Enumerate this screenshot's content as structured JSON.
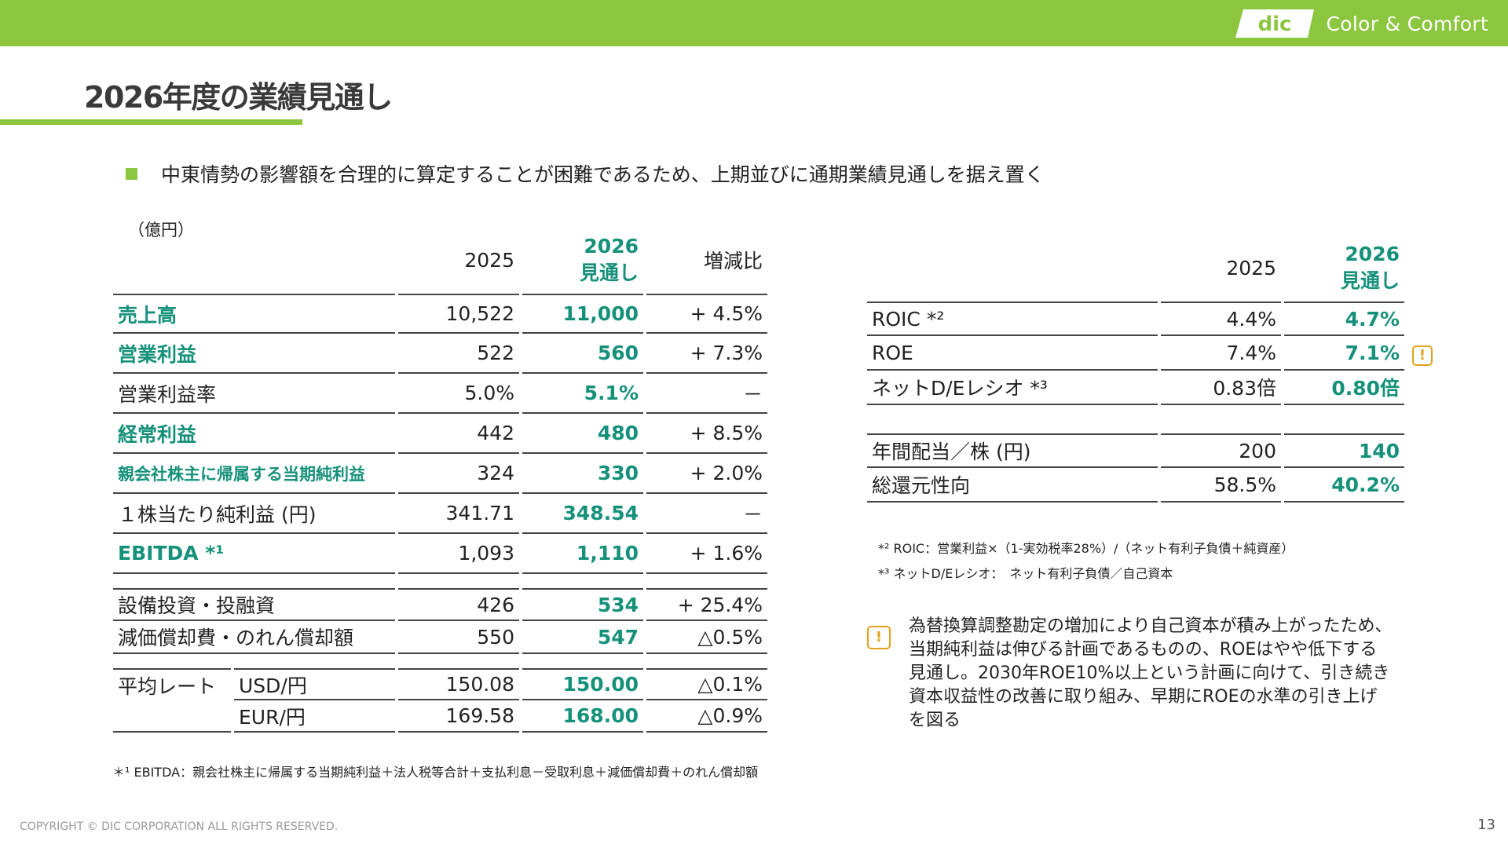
{
  "header": {
    "brand": "Color & Comfort",
    "logo_text": "dic"
  },
  "title": "2026年度の業績見通し",
  "lead": "中東情勢の影響額を合理的に算定することが困難であるため、上期並びに通期業績見通しを据え置く",
  "unit": "（億円）",
  "left_table": {
    "col_2025": "2025",
    "col_2026_a": "2026",
    "col_2026_b": "見通し",
    "col_change": "増減比",
    "rows": [
      {
        "label": "売上高",
        "v2025": "10,522",
        "v2026": "11,000",
        "change": "+ 4.5%"
      },
      {
        "label": "営業利益",
        "v2025": "522",
        "v2026": "560",
        "change": "+ 7.3%"
      },
      {
        "label": "営業利益率",
        "v2025": "5.0%",
        "v2026": "5.1%",
        "change": "－"
      },
      {
        "label": "経常利益",
        "v2025": "442",
        "v2026": "480",
        "change": "+ 8.5%"
      },
      {
        "label": "親会社株主に帰属する当期純利益",
        "v2025": "324",
        "v2026": "330",
        "change": "+ 2.0%"
      },
      {
        "label": "１株当たり純利益 (円)",
        "v2025": "341.71",
        "v2026": "348.54",
        "change": "－"
      },
      {
        "label": "EBITDA *¹",
        "v2025": "1,093",
        "v2026": "1,110",
        "change": "+ 1.6%"
      },
      {
        "label": "設備投資・投融資",
        "v2025": "426",
        "v2026": "534",
        "change": "+ 25.4%"
      },
      {
        "label": "減価償却費・のれん償却額",
        "v2025": "550",
        "v2026": "547",
        "change": "△0.5%"
      }
    ],
    "rate_label": "平均レート",
    "rates": [
      {
        "ccy": "USD/円",
        "v2025": "150.08",
        "v2026": "150.00",
        "change": "△0.1%"
      },
      {
        "ccy": "EUR/円",
        "v2025": "169.58",
        "v2026": "168.00",
        "change": "△0.9%"
      }
    ]
  },
  "right_table": {
    "col_2025": "2025",
    "col_2026_a": "2026",
    "col_2026_b": "見通し",
    "rows": [
      {
        "label": "ROIC *²",
        "v2025": "4.4%",
        "v2026": "4.7%"
      },
      {
        "label": "ROE",
        "v2025": "7.4%",
        "v2026": "7.1%",
        "warn": "!"
      },
      {
        "label": "ネットD/Eレシオ *³",
        "v2025": "0.83倍",
        "v2026": "0.80倍"
      },
      {
        "label": "年間配当／株 (円)",
        "v2025": "200",
        "v2026": "140"
      },
      {
        "label": "総還元性向",
        "v2025": "58.5%",
        "v2026": "40.2%"
      }
    ]
  },
  "footnotes": {
    "roic": "*² ROIC：営業利益×（1-実効税率28%）/（ネット有利子負債＋純資産）",
    "de": "*³ ネットD/Eレシオ：　ネット有利子負債／自己資本",
    "ebitda": "＊¹ EBITDA：親会社株主に帰属する当期純利益＋法人税等合計＋支払利息－受取利息＋減価償却費＋のれん償却額"
  },
  "note": {
    "icon": "!",
    "lines": [
      "為替換算調整勘定の増加により自己資本が積み上がったため、",
      "当期純利益は伸びる計画であるものの、ROEはやや低下する",
      "見通し。2030年ROE10%以上という計画に向けて、引き続き",
      "資本収益性の改善に取り組み、早期にROEの水準の引き上げ",
      "を図る"
    ]
  },
  "copyright": "COPYRIGHT © DIC CORPORATION ALL RIGHTS RESERVED.",
  "page_number": "13",
  "colors": {
    "brand_green": "#8cc63f",
    "value_green": "#15917a",
    "warning": "#e3a21a"
  }
}
